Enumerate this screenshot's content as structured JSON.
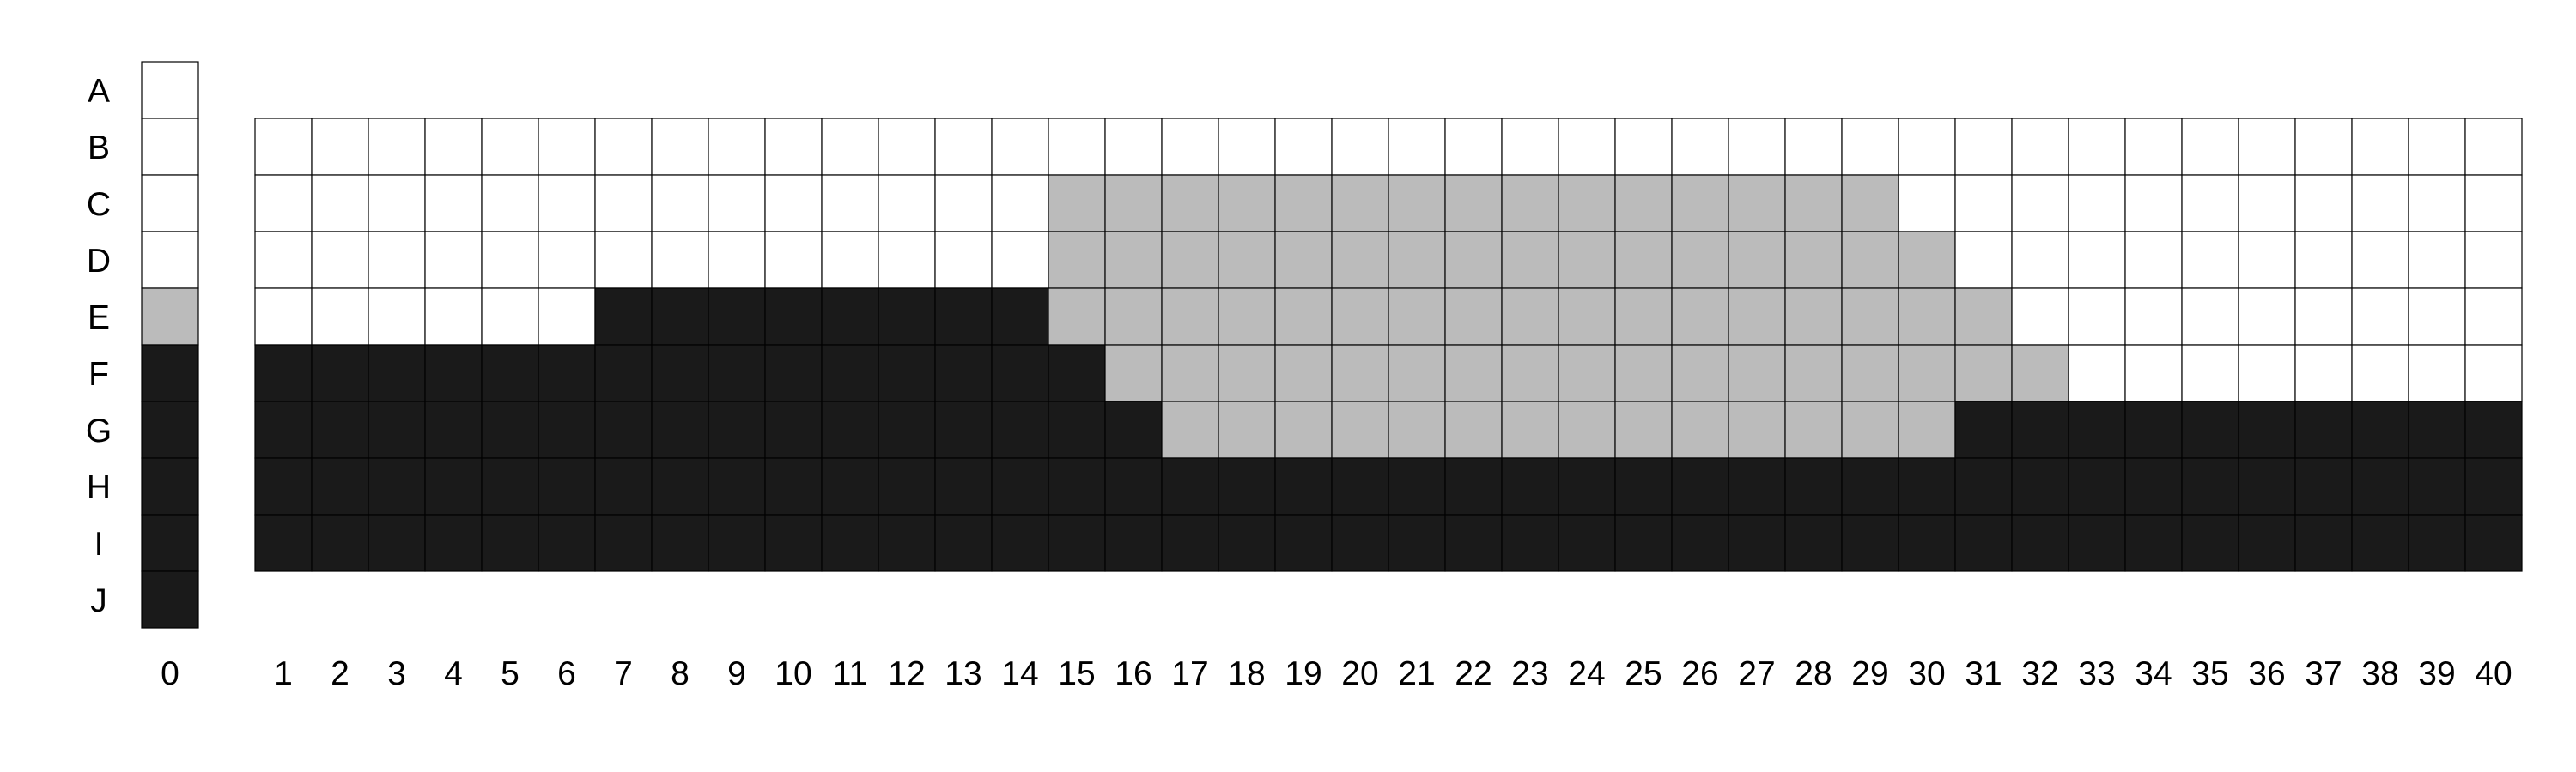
{
  "rows": [
    "A",
    "B",
    "C",
    "D",
    "E",
    "F",
    "G",
    "H",
    "I",
    "J"
  ],
  "key_column": {
    "label": "0",
    "fills": [
      "W",
      "W",
      "W",
      "W",
      "G",
      "B",
      "B",
      "B",
      "B",
      "B"
    ]
  },
  "grid": {
    "columns": [
      "1",
      "2",
      "3",
      "4",
      "5",
      "6",
      "7",
      "8",
      "9",
      "10",
      "11",
      "12",
      "13",
      "14",
      "15",
      "16",
      "17",
      "18",
      "19",
      "20",
      "21",
      "22",
      "23",
      "24",
      "25",
      "26",
      "27",
      "28",
      "29",
      "30",
      "31",
      "32",
      "33",
      "34",
      "35",
      "36",
      "37",
      "38",
      "39",
      "40"
    ],
    "rows": [
      "B",
      "C",
      "D",
      "E",
      "F",
      "G",
      "H",
      "I"
    ],
    "fills": [
      "WWWWWWWWWWWWWWWWWWWWWWWWWWWWWWWWWWWWWWWW",
      "WWWWWWWWWWWWWWGGGGGGGGGGGGGGGWWWWWWWWWWW",
      "WWWWWWWWWWWWWWGGGGGGGGGGGGGGGGWWWWWWWWWW",
      "WWWWWWBBBBBBBBGGGGGGGGGGGGGGGGGWWWWWWWWW",
      "BBBBBBBBBBBBBBBGGGGGGGGGGGGGGGGGWWWWWWWW",
      "BBBBBBBBBBBBBBBBGGGGGGGGGGGGGGBBBBBBBBBB",
      "BBBBBBBBBBBBBBBBBBBBBBBBBBBBBBBBBBBBBBBB",
      "BBBBBBBBBBBBBBBBBBBBBBBBBBBBBBBBBBBBBBBB"
    ]
  },
  "colors": {
    "W": "#ffffff",
    "G": "#bbbbbb",
    "B": "#1a1a1a"
  }
}
